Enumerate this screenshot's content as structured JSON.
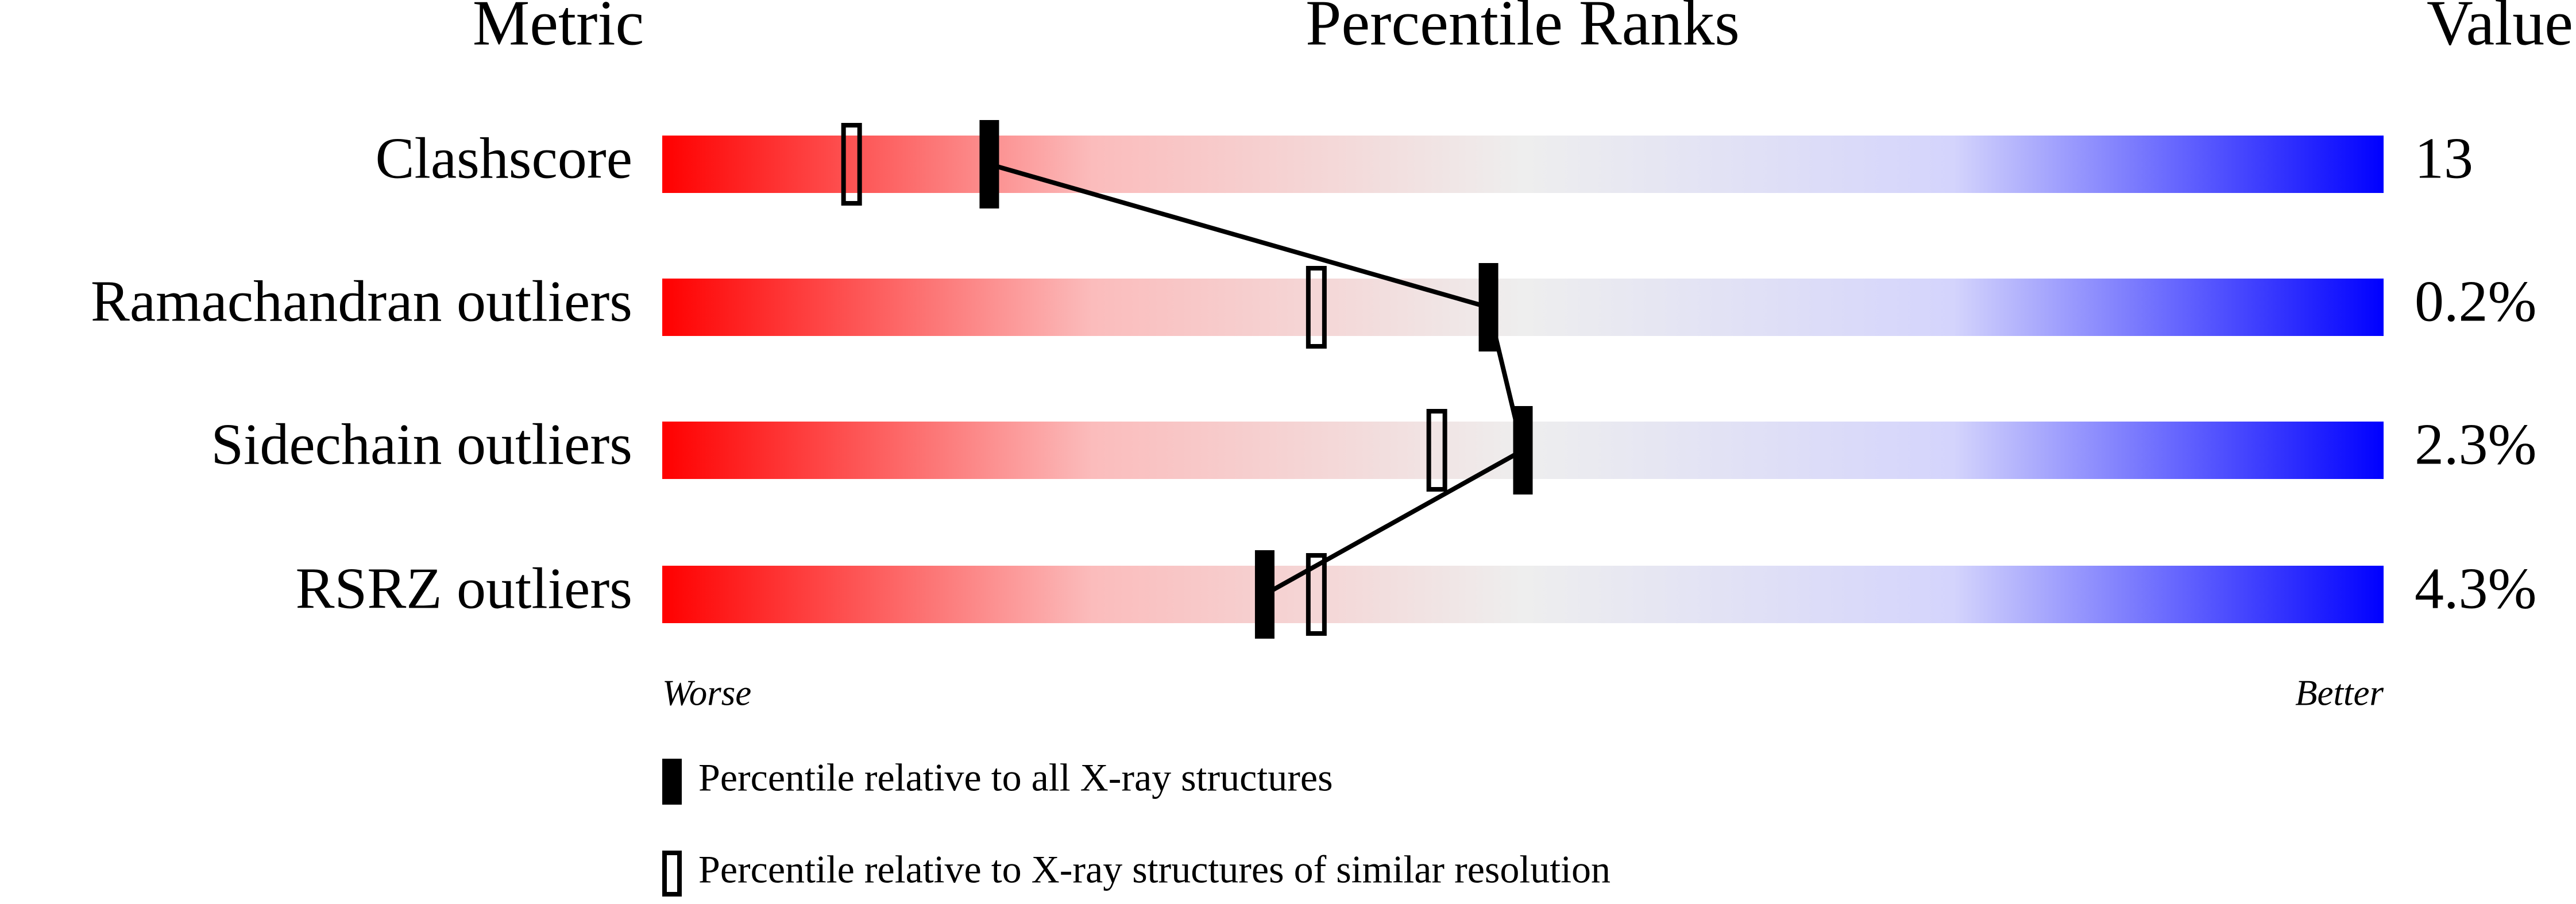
{
  "chart_data": {
    "type": "percentile-slider",
    "column_headers": {
      "metric": "Metric",
      "ranks": "Percentile Ranks",
      "value": "Value"
    },
    "categories": [
      "Clashscore",
      "Ramachandran outliers",
      "Sidechain outliers",
      "RSRZ outliers"
    ],
    "values": [
      13,
      0.2,
      2.3,
      4.3
    ],
    "value_labels": [
      "13",
      "0.2%",
      "2.3%",
      "4.3%"
    ],
    "series": [
      {
        "name": "Percentile relative to all X-ray structures",
        "style": "filled",
        "color": "#000000",
        "values": [
          19,
          48,
          50,
          35
        ]
      },
      {
        "name": "Percentile relative to X-ray structures of similar resolution",
        "style": "open",
        "color": "#000000",
        "values": [
          11,
          38,
          45,
          38
        ]
      }
    ],
    "xlim": [
      0,
      100
    ],
    "worse_label": "Worse",
    "better_label": "Better",
    "gradient": [
      "#ff0000",
      "#fbbcbc",
      "#eeeeee",
      "#d4d4fc",
      "#0000ff"
    ]
  }
}
